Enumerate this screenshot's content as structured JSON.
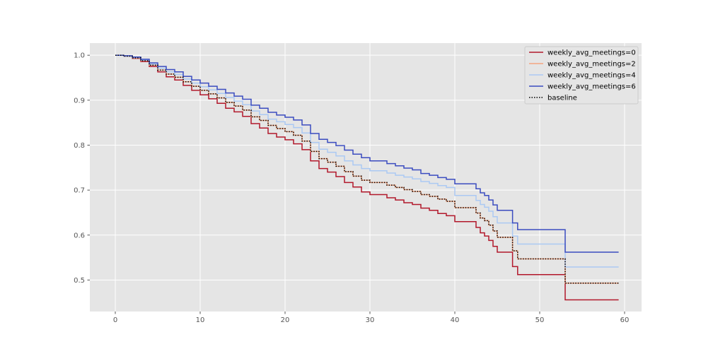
{
  "chart_data": {
    "type": "line",
    "step": true,
    "title": "",
    "xlabel": "",
    "ylabel": "",
    "xlim": [
      -3,
      62
    ],
    "ylim": [
      0.43,
      1.027
    ],
    "xticks": [
      0,
      10,
      20,
      30,
      40,
      50,
      60
    ],
    "yticks": [
      0.5,
      0.6,
      0.7,
      0.8,
      0.9,
      1.0
    ],
    "ytick_labels": [
      "0.5",
      "0.6",
      "0.7",
      "0.8",
      "0.9",
      "1.0"
    ],
    "grid": true,
    "legend_position": "top-right",
    "x": [
      0,
      1,
      2,
      3,
      4,
      5,
      6,
      7,
      8,
      9,
      10,
      11,
      12,
      13,
      14,
      15,
      16,
      17,
      18,
      19,
      20,
      21,
      22,
      23,
      24,
      25,
      26,
      27,
      28,
      29,
      30,
      31,
      32,
      33,
      34,
      35,
      36,
      37,
      38,
      39,
      40,
      41,
      42,
      42.5,
      43,
      43.5,
      44,
      44.5,
      45,
      46,
      46.8,
      47.4,
      48,
      50,
      52,
      53,
      55,
      57,
      59.3
    ],
    "series": [
      {
        "name": "weekly_avg_meetings=0",
        "color": "#b2182b",
        "dash": "",
        "values": [
          1.0,
          0.998,
          0.993,
          0.986,
          0.975,
          0.963,
          0.952,
          0.945,
          0.933,
          0.922,
          0.912,
          0.903,
          0.893,
          0.882,
          0.874,
          0.864,
          0.848,
          0.838,
          0.826,
          0.818,
          0.812,
          0.803,
          0.79,
          0.765,
          0.748,
          0.74,
          0.73,
          0.717,
          0.707,
          0.696,
          0.69,
          0.69,
          0.683,
          0.678,
          0.672,
          0.668,
          0.66,
          0.655,
          0.648,
          0.643,
          0.63,
          0.63,
          0.63,
          0.617,
          0.605,
          0.598,
          0.588,
          0.575,
          0.562,
          0.562,
          0.53,
          0.512,
          0.512,
          0.512,
          0.512,
          0.456,
          0.456,
          0.456,
          0.456
        ]
      },
      {
        "name": "weekly_avg_meetings=2",
        "color": "#f4a582",
        "dash": "",
        "values": [
          1.0,
          0.998,
          0.994,
          0.988,
          0.978,
          0.967,
          0.958,
          0.951,
          0.941,
          0.931,
          0.922,
          0.914,
          0.905,
          0.895,
          0.887,
          0.878,
          0.863,
          0.855,
          0.844,
          0.837,
          0.83,
          0.822,
          0.809,
          0.786,
          0.77,
          0.762,
          0.753,
          0.741,
          0.731,
          0.722,
          0.717,
          0.717,
          0.711,
          0.706,
          0.701,
          0.697,
          0.69,
          0.686,
          0.68,
          0.675,
          0.661,
          0.661,
          0.661,
          0.649,
          0.638,
          0.632,
          0.622,
          0.609,
          0.595,
          0.595,
          0.565,
          0.547,
          0.547,
          0.547,
          0.547,
          0.493,
          0.493,
          0.493,
          0.493
        ]
      },
      {
        "name": "weekly_avg_meetings=4",
        "color": "#abc9f3",
        "dash": "",
        "values": [
          1.0,
          0.998,
          0.995,
          0.989,
          0.98,
          0.971,
          0.963,
          0.957,
          0.947,
          0.938,
          0.93,
          0.923,
          0.915,
          0.906,
          0.898,
          0.89,
          0.876,
          0.868,
          0.858,
          0.852,
          0.846,
          0.839,
          0.827,
          0.806,
          0.791,
          0.784,
          0.776,
          0.765,
          0.756,
          0.748,
          0.743,
          0.743,
          0.738,
          0.733,
          0.729,
          0.725,
          0.719,
          0.715,
          0.71,
          0.706,
          0.688,
          0.688,
          0.688,
          0.677,
          0.668,
          0.662,
          0.653,
          0.641,
          0.627,
          0.627,
          0.598,
          0.58,
          0.58,
          0.58,
          0.58,
          0.529,
          0.529,
          0.529,
          0.529
        ]
      },
      {
        "name": "weekly_avg_meetings=6",
        "color": "#3b4cc0",
        "dash": "",
        "values": [
          1.0,
          0.999,
          0.996,
          0.991,
          0.983,
          0.975,
          0.968,
          0.963,
          0.953,
          0.945,
          0.938,
          0.931,
          0.924,
          0.916,
          0.909,
          0.902,
          0.889,
          0.882,
          0.873,
          0.867,
          0.862,
          0.856,
          0.845,
          0.826,
          0.813,
          0.806,
          0.799,
          0.789,
          0.78,
          0.772,
          0.765,
          0.765,
          0.759,
          0.754,
          0.749,
          0.745,
          0.737,
          0.733,
          0.728,
          0.724,
          0.714,
          0.714,
          0.714,
          0.703,
          0.694,
          0.688,
          0.678,
          0.667,
          0.655,
          0.655,
          0.627,
          0.612,
          0.612,
          0.612,
          0.612,
          0.562,
          0.562,
          0.562,
          0.562
        ]
      },
      {
        "name": "baseline",
        "color": "#000000",
        "dash": "1.5,2",
        "values": [
          1.0,
          0.998,
          0.994,
          0.988,
          0.978,
          0.967,
          0.958,
          0.951,
          0.941,
          0.931,
          0.922,
          0.914,
          0.905,
          0.895,
          0.887,
          0.878,
          0.863,
          0.855,
          0.844,
          0.837,
          0.83,
          0.822,
          0.809,
          0.786,
          0.77,
          0.762,
          0.753,
          0.741,
          0.731,
          0.722,
          0.717,
          0.717,
          0.711,
          0.706,
          0.701,
          0.697,
          0.69,
          0.686,
          0.68,
          0.675,
          0.661,
          0.661,
          0.661,
          0.649,
          0.638,
          0.632,
          0.622,
          0.609,
          0.595,
          0.595,
          0.565,
          0.547,
          0.547,
          0.547,
          0.547,
          0.493,
          0.493,
          0.493,
          0.493
        ]
      }
    ]
  },
  "colors": {
    "plot_background": "#e5e5e5",
    "grid": "#ffffff",
    "tick_label": "#555555"
  }
}
